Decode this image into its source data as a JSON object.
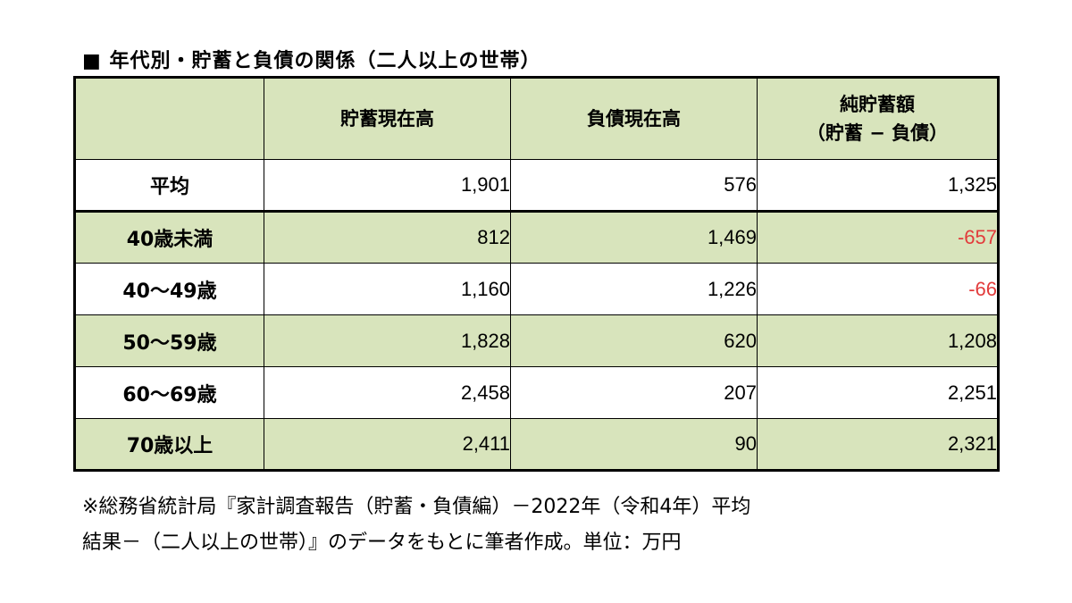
{
  "title": "■ 年代別・貯蓄と負債の関係（二人以上の世帯）",
  "table": {
    "headers": [
      "",
      "貯蓄現在高",
      "負債現在高",
      "純貯蓄額"
    ],
    "header_sub": "（貯蓄 − 負債）",
    "rows": [
      {
        "label": "平均",
        "savings": "1,901",
        "debt": "576",
        "net": "1,325"
      },
      {
        "label": "40歳未満",
        "savings": "812",
        "debt": "1,469",
        "net": "-657"
      },
      {
        "label": "40～49歳",
        "savings": "1,160",
        "debt": "1,226",
        "net": "-66"
      },
      {
        "label": "50～59歳",
        "savings": "1,828",
        "debt": "620",
        "net": "1,208"
      },
      {
        "label": "60～69歳",
        "savings": "2,458",
        "debt": "207",
        "net": "2,251"
      },
      {
        "label": "70歳以上",
        "savings": "2,411",
        "debt": "90",
        "net": "2,321"
      }
    ]
  },
  "footnote": {
    "line1": "※総務省統計局『家計調査報告（貯蓄・負債編）－2022年（令和4年）平均",
    "line2": "結果－（二人以上の世帯）』のデータをもとに筆者作成。単位：万円"
  },
  "colors": {
    "header_bg": "#d8e4bc",
    "alt_row_bg": "#d8e4bc",
    "negative_text": "#e23b3b",
    "border": "#000000"
  }
}
